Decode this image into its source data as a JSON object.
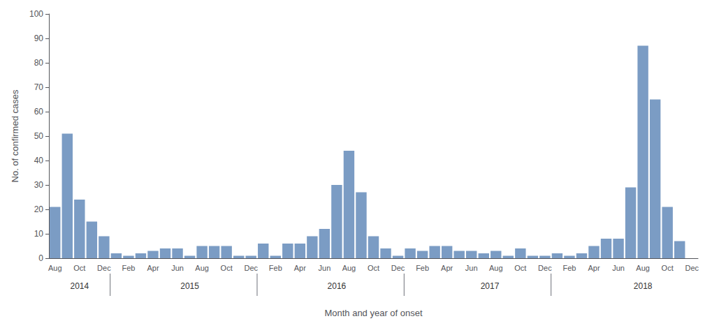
{
  "chart_data": {
    "type": "bar",
    "xlabel": "Month and year of onset",
    "ylabel": "No. of confirmed cases",
    "categories": [
      "Aug",
      null,
      "Oct",
      null,
      "Dec",
      null,
      "Feb",
      null,
      "Apr",
      null,
      "Jun",
      null,
      "Aug",
      null,
      "Oct",
      null,
      "Dec",
      null,
      "Feb",
      null,
      "Apr",
      null,
      "Jun",
      null,
      "Aug",
      null,
      "Oct",
      null,
      "Dec",
      null,
      "Feb",
      null,
      "Apr",
      null,
      "Jun",
      null,
      "Aug",
      null,
      "Oct",
      null,
      "Dec",
      null,
      "Feb",
      null,
      "Apr",
      null,
      "Jun",
      null,
      "Aug",
      null,
      "Oct",
      null,
      "Dec"
    ],
    "values": [
      21,
      51,
      24,
      15,
      9,
      2,
      1,
      2,
      3,
      4,
      4,
      1,
      5,
      5,
      5,
      1,
      1,
      6,
      1,
      6,
      6,
      9,
      12,
      30,
      44,
      27,
      9,
      4,
      1,
      4,
      3,
      5,
      5,
      3,
      3,
      2,
      3,
      1,
      4,
      1,
      1,
      2,
      1,
      2,
      5,
      8,
      8,
      29,
      87,
      65,
      21,
      7,
      0
    ],
    "color": "#7b9cc4",
    "ylim": [
      0,
      100
    ],
    "yticks": [
      0,
      10,
      20,
      30,
      40,
      50,
      60,
      70,
      80,
      90,
      100
    ],
    "grid": false,
    "annotations": [
      {
        "text": "2014",
        "x": 2.0
      },
      {
        "text": "2015",
        "x": 11.0
      },
      {
        "text": "2016",
        "x": 23.0
      },
      {
        "text": "2017",
        "x": 35.5
      },
      {
        "text": "2018",
        "x": 48.0
      }
    ],
    "dividers": [
      4.5,
      16.5,
      28.5,
      40.5
    ]
  }
}
